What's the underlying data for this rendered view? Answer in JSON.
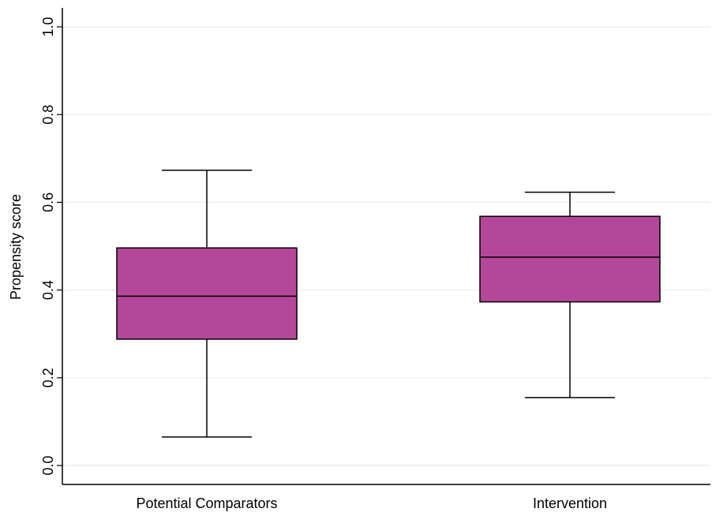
{
  "chart_data": {
    "type": "box",
    "title": "",
    "xlabel": "",
    "ylabel": "Propensity score",
    "ylim": [
      0.0,
      1.0
    ],
    "yticks": [
      0.0,
      0.2,
      0.4,
      0.6,
      0.8,
      1.0
    ],
    "ytick_labels": [
      "0.0",
      "0.2",
      "0.4",
      "0.6",
      "0.8",
      "1.0"
    ],
    "grid": true,
    "categories": [
      "Potential Comparators",
      "Intervention"
    ],
    "boxes": [
      {
        "category": "Potential Comparators",
        "whisker_low": 0.065,
        "q1": 0.288,
        "median": 0.386,
        "q3": 0.496,
        "whisker_high": 0.673
      },
      {
        "category": "Intervention",
        "whisker_low": 0.155,
        "q1": 0.373,
        "median": 0.475,
        "q3": 0.568,
        "whisker_high": 0.623
      }
    ],
    "box_color": "#b5479a",
    "grid_color": "#e4eeee"
  }
}
